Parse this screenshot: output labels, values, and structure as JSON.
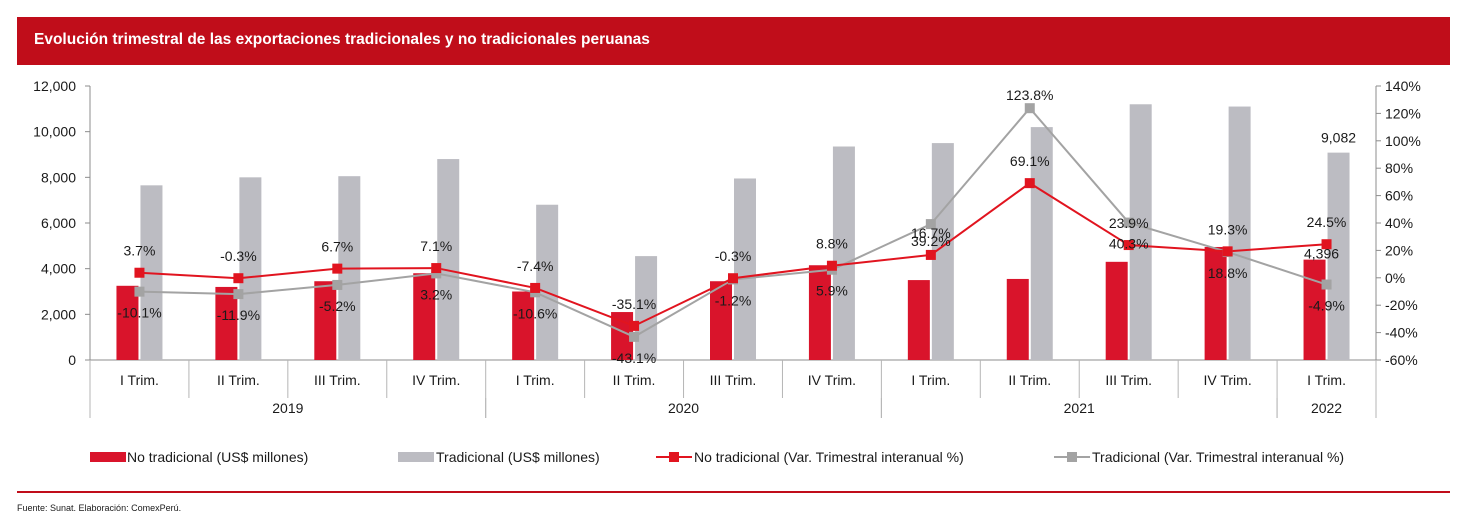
{
  "title": "Evolución trimestral de las exportaciones tradicionales y no tradicionales peruanas",
  "source": "Fuente: Sunat. Elaboración: ComexPerú.",
  "colors": {
    "red": "#d9142b",
    "gray": "#bcbcc2",
    "grayLine": "#a3a3a3",
    "redLine": "#e1141f",
    "titleBg": "#c00d1a"
  },
  "chart_data": {
    "type": "bar",
    "categories": [
      "I Trim.",
      "II Trim.",
      "III Trim.",
      "IV Trim.",
      "I Trim.",
      "II Trim.",
      "III Trim.",
      "IV Trim.",
      "I Trim.",
      "II Trim.",
      "III Trim.",
      "IV Trim.",
      "I Trim."
    ],
    "years": [
      {
        "label": "2019",
        "start": 0,
        "end": 3
      },
      {
        "label": "2020",
        "start": 4,
        "end": 7
      },
      {
        "label": "2021",
        "start": 8,
        "end": 11
      },
      {
        "label": "2022",
        "start": 12,
        "end": 12
      }
    ],
    "ylim": [
      0,
      12000
    ],
    "yticks": [
      0,
      2000,
      4000,
      6000,
      8000,
      10000,
      12000
    ],
    "ytick_labels": [
      "0",
      "2,000",
      "4,000",
      "6,000",
      "8,000",
      "10,000",
      "12,000"
    ],
    "y2lim": [
      -60,
      140
    ],
    "y2ticks": [
      -60,
      -40,
      -20,
      0,
      20,
      40,
      60,
      80,
      100,
      120,
      140
    ],
    "y2tick_labels": [
      "-60%",
      "-40%",
      "-20%",
      "0%",
      "20%",
      "40%",
      "60%",
      "80%",
      "100%",
      "120%",
      "140%"
    ],
    "series": [
      {
        "name": "No tradicional (US$ millones)",
        "kind": "bar",
        "axis": "left",
        "values": [
          3250,
          3200,
          3450,
          3800,
          3000,
          2100,
          3450,
          4150,
          3500,
          3550,
          4300,
          4950,
          4396
        ]
      },
      {
        "name": "Tradicional (US$ millones)",
        "kind": "bar",
        "axis": "left",
        "values": [
          7650,
          8000,
          8050,
          8800,
          6800,
          4550,
          7950,
          9350,
          9500,
          10200,
          11200,
          11100,
          9082
        ]
      },
      {
        "name": "No tradicional (Var. Trimestral interanual %)",
        "kind": "line",
        "axis": "right",
        "values": [
          3.7,
          -0.3,
          6.7,
          7.1,
          -7.4,
          -35.1,
          -0.3,
          8.8,
          16.7,
          69.1,
          23.9,
          19.3,
          24.5
        ]
      },
      {
        "name": "Tradicional (Var. Trimestral interanual %)",
        "kind": "line",
        "axis": "right",
        "values": [
          -10.1,
          -11.9,
          -5.2,
          3.2,
          -10.6,
          -43.1,
          -1.2,
          5.9,
          39.2,
          123.8,
          40.3,
          18.8,
          -4.9
        ]
      }
    ],
    "data_labels": {
      "bar_last_gray": "9,082",
      "bar_last_red": "4,396",
      "line_red": [
        "3.7%",
        "-0.3%",
        "6.7%",
        "7.1%",
        "-7.4%",
        "-35.1%",
        "-0.3%",
        "8.8%",
        "16.7%",
        "69.1%",
        "23.9%",
        "19.3%",
        "24.5%"
      ],
      "line_gray": [
        "-10.1%",
        "-11.9%",
        "-5.2%",
        "3.2%",
        "-10.6%",
        "-43.1%",
        "-1.2%",
        "5.9%",
        "39.2%",
        "123.8%",
        "40.3%",
        "18.8%",
        "-4.9%"
      ]
    },
    "legend": {
      "position": "bottom"
    }
  }
}
